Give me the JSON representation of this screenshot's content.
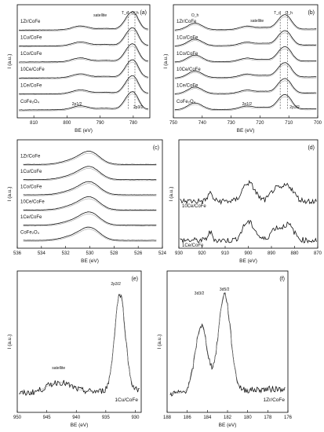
{
  "chart_data": [
    {
      "type": "line",
      "panel_label": "(a)",
      "xlabel": "BE (eV)",
      "ylabel": "I (a.u.)",
      "xlim": [
        815,
        775
      ],
      "xticks": [
        "810",
        "800",
        "790",
        "780"
      ],
      "series": [
        {
          "name": "1Zr/CoFe"
        },
        {
          "name": "1Cu/CoFe"
        },
        {
          "name": "1Co/CoFe"
        },
        {
          "name": "10Ce/CoFe"
        },
        {
          "name": "1Ce/CoFe"
        },
        {
          "name": "CoFe₂O₄"
        }
      ],
      "annotations": [
        "satellite",
        "T_d",
        "O_h",
        "2p1/2",
        "2p3/2"
      ]
    },
    {
      "type": "line",
      "panel_label": "(b)",
      "xlabel": "BE (eV)",
      "ylabel": "I (a.u.)",
      "xlim": [
        750,
        700
      ],
      "xticks": [
        "750",
        "740",
        "730",
        "720",
        "710",
        "700"
      ],
      "series": [
        {
          "name": "1Zr/CoFe"
        },
        {
          "name": "1Cu/CoFe"
        },
        {
          "name": "1Co/CoFe"
        },
        {
          "name": "10Ce/CoFe"
        },
        {
          "name": "1Ce/CoFe"
        },
        {
          "name": "CoFe₂O₄"
        }
      ],
      "annotations": [
        "O_h",
        "satellite",
        "T_d",
        "O_h",
        "2p1/2",
        "2p3/2"
      ]
    },
    {
      "type": "line",
      "panel_label": "(c)",
      "xlabel": "BE (eV)",
      "ylabel": "I (a.u.)",
      "xlim": [
        536,
        524
      ],
      "xticks": [
        "536",
        "534",
        "532",
        "530",
        "528",
        "526",
        "524"
      ],
      "series": [
        {
          "name": "1Zr/CoFe"
        },
        {
          "name": "1Cu/CoFe"
        },
        {
          "name": "1Co/CoFe"
        },
        {
          "name": "10Ce/CoFe"
        },
        {
          "name": "1Ce/CoFe"
        },
        {
          "name": "CoFe₂O₄"
        }
      ]
    },
    {
      "type": "line",
      "panel_label": "(d)",
      "xlabel": "BE (eV)",
      "ylabel": "I (a.u.)",
      "xlim": [
        930,
        870
      ],
      "xticks": [
        "930",
        "920",
        "910",
        "900",
        "890",
        "880",
        "870"
      ],
      "series": [
        {
          "name": "10Ce/CoFe"
        },
        {
          "name": "1Ce/CoFe"
        }
      ]
    },
    {
      "type": "line",
      "panel_label": "(e)",
      "xlabel": "BE (eV)",
      "ylabel": "I (a.u.)",
      "xlim": [
        950,
        929
      ],
      "xticks": [
        "950",
        "945",
        "940",
        "935",
        "930"
      ],
      "series": [
        {
          "name": "1Cu/CoFe"
        }
      ],
      "annotations": [
        "satellite",
        "2p3/2"
      ]
    },
    {
      "type": "line",
      "panel_label": "(f)",
      "xlabel": "BE (eV)",
      "ylabel": "I (a.u.)",
      "xlim": [
        188,
        176
      ],
      "xticks": [
        "188",
        "186",
        "184",
        "182",
        "180",
        "178",
        "176"
      ],
      "series": [
        {
          "name": "1Zr/CoFe"
        }
      ],
      "annotations": [
        "3d3/2",
        "3d5/2"
      ]
    }
  ]
}
